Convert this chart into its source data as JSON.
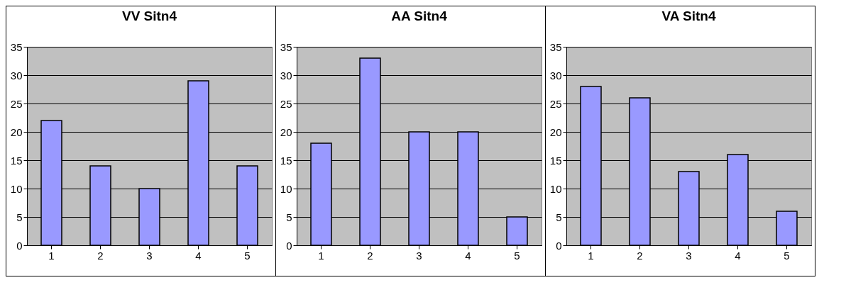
{
  "chart_data": [
    {
      "type": "bar",
      "title": "VV Sitn4",
      "categories": [
        "1",
        "2",
        "3",
        "4",
        "5"
      ],
      "values": [
        22,
        14,
        10,
        29,
        14
      ],
      "color": "#9999ff",
      "ylim": [
        0,
        35
      ],
      "yticks": [
        0,
        5,
        10,
        15,
        20,
        25,
        30,
        35
      ],
      "grid": "y"
    },
    {
      "type": "bar",
      "title": "AA Sitn4",
      "categories": [
        "1",
        "2",
        "3",
        "4",
        "5"
      ],
      "values": [
        18,
        33,
        20,
        20,
        5
      ],
      "color": "#9999ff",
      "ylim": [
        0,
        35
      ],
      "yticks": [
        0,
        5,
        10,
        15,
        20,
        25,
        30,
        35
      ],
      "grid": "y"
    },
    {
      "type": "bar",
      "title": "VA Sitn4",
      "categories": [
        "1",
        "2",
        "3",
        "4",
        "5"
      ],
      "values": [
        28,
        26,
        13,
        16,
        6
      ],
      "color": "#9999ff",
      "ylim": [
        0,
        35
      ],
      "yticks": [
        0,
        5,
        10,
        15,
        20,
        25,
        30,
        35
      ],
      "grid": "y"
    }
  ]
}
